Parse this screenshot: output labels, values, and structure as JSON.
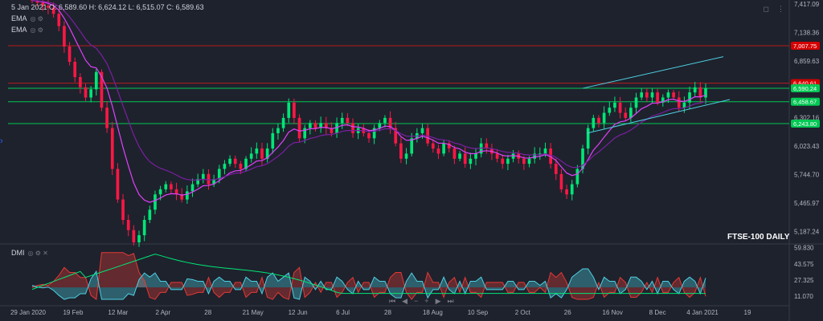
{
  "header": {
    "ohlc_text": "5 Jan 2021 O: 6,589.60  H: 6,624.12  L: 6,515.07  C: 6,589.63"
  },
  "indicators": [
    {
      "label": "EMA",
      "icons": "◎ ⚙"
    },
    {
      "label": "EMA",
      "icons": "◎ ⚙"
    }
  ],
  "dmi_label": "DMI",
  "dmi_icons": "◎ ⚙ ✕",
  "top_icons": [
    "◻",
    "⋮"
  ],
  "watermark": "FTSE-100 DAILY",
  "pager_icons": [
    "⏮",
    "◀",
    "−",
    "+",
    "▶",
    "⏭"
  ],
  "colors": {
    "background": "#1e222d",
    "up": "#00e676",
    "down": "#ff1744",
    "ema_fast": "#e040fb",
    "ema_slow": "#7b1fa2",
    "hline_red": "#b71c1c",
    "hline_green": "#00c853",
    "channel": "#4dd0e1",
    "dmi_plus": "#4dd0e1",
    "dmi_minus": "#e53935",
    "adx": "#00e676"
  },
  "chart_data": {
    "type": "candlestick",
    "price_axis": {
      "ticks": [
        "7,417.09",
        "7,138.36",
        "6,859.63",
        "6,580.89",
        "6,302.16",
        "6,023.43",
        "5,744.70",
        "5,465.97",
        "5,187.24"
      ],
      "range": [
        5080,
        7440
      ]
    },
    "time_axis": {
      "ticks": [
        "29 Jan 2020",
        "19 Feb",
        "12 Mar",
        "2 Apr",
        "28",
        "21 May",
        "12 Jun",
        "6 Jul",
        "28",
        "18 Aug",
        "10 Sep",
        "2 Oct",
        "26",
        "16 Nov",
        "8 Dec",
        "4 Jan 2021",
        "19"
      ]
    },
    "price_labels": [
      {
        "text": "7,007.75",
        "value": 7007.75,
        "kind": "red"
      },
      {
        "text": "6,640.61",
        "value": 6640.61,
        "kind": "red"
      },
      {
        "text": "6,590.24",
        "value": 6590.24,
        "kind": "green"
      },
      {
        "text": "6,458.67",
        "value": 6458.67,
        "kind": "green"
      },
      {
        "text": "6,243.80",
        "value": 6243.8,
        "kind": "green"
      }
    ],
    "horizontal_lines": [
      {
        "value": 7007.75,
        "color": "red"
      },
      {
        "value": 6640.61,
        "color": "red"
      },
      {
        "value": 6590.24,
        "color": "green"
      },
      {
        "value": 6458.67,
        "color": "green"
      },
      {
        "value": 6243.8,
        "color": "green"
      }
    ],
    "closes": [
      7450,
      7430,
      7400,
      7380,
      7320,
      7200,
      7000,
      6850,
      6700,
      6600,
      6500,
      6580,
      6750,
      6400,
      6200,
      5800,
      5500,
      5300,
      5200,
      5080,
      5150,
      5300,
      5400,
      5550,
      5600,
      5650,
      5600,
      5550,
      5500,
      5580,
      5650,
      5700,
      5750,
      5650,
      5700,
      5800,
      5850,
      5900,
      5850,
      5800,
      5900,
      5950,
      6000,
      5900,
      6000,
      6150,
      6200,
      6300,
      6450,
      6300,
      6100,
      6200,
      6250,
      6200,
      6250,
      6200,
      6150,
      6250,
      6300,
      6250,
      6150,
      6200,
      6150,
      6100,
      6200,
      6250,
      6300,
      6200,
      6050,
      5900,
      5950,
      6100,
      6150,
      6200,
      6050,
      6000,
      5950,
      6050,
      6000,
      5900,
      5950,
      5850,
      5900,
      5950,
      6050,
      6000,
      5950,
      5900,
      5850,
      5900,
      5950,
      5900,
      5850,
      5900,
      5950,
      5950,
      6000,
      5850,
      5750,
      5600,
      5550,
      5650,
      5800,
      6000,
      6200,
      6300,
      6250,
      6350,
      6400,
      6450,
      6350,
      6300,
      6400,
      6500,
      6550,
      6500,
      6550,
      6450,
      6500,
      6550,
      6500,
      6400,
      6450,
      6550,
      6600,
      6500,
      6589.63
    ],
    "channel_upper": [
      [
        6550,
        6590
      ],
      [
        6700,
        6920
      ]
    ],
    "channel_lower": [
      [
        6150,
        6230
      ],
      [
        6400,
        6480
      ]
    ],
    "dmi_axis": {
      "ticks": [
        "59.830",
        "43.575",
        "27.325",
        "11.070"
      ],
      "range": [
        4,
        62
      ]
    }
  }
}
